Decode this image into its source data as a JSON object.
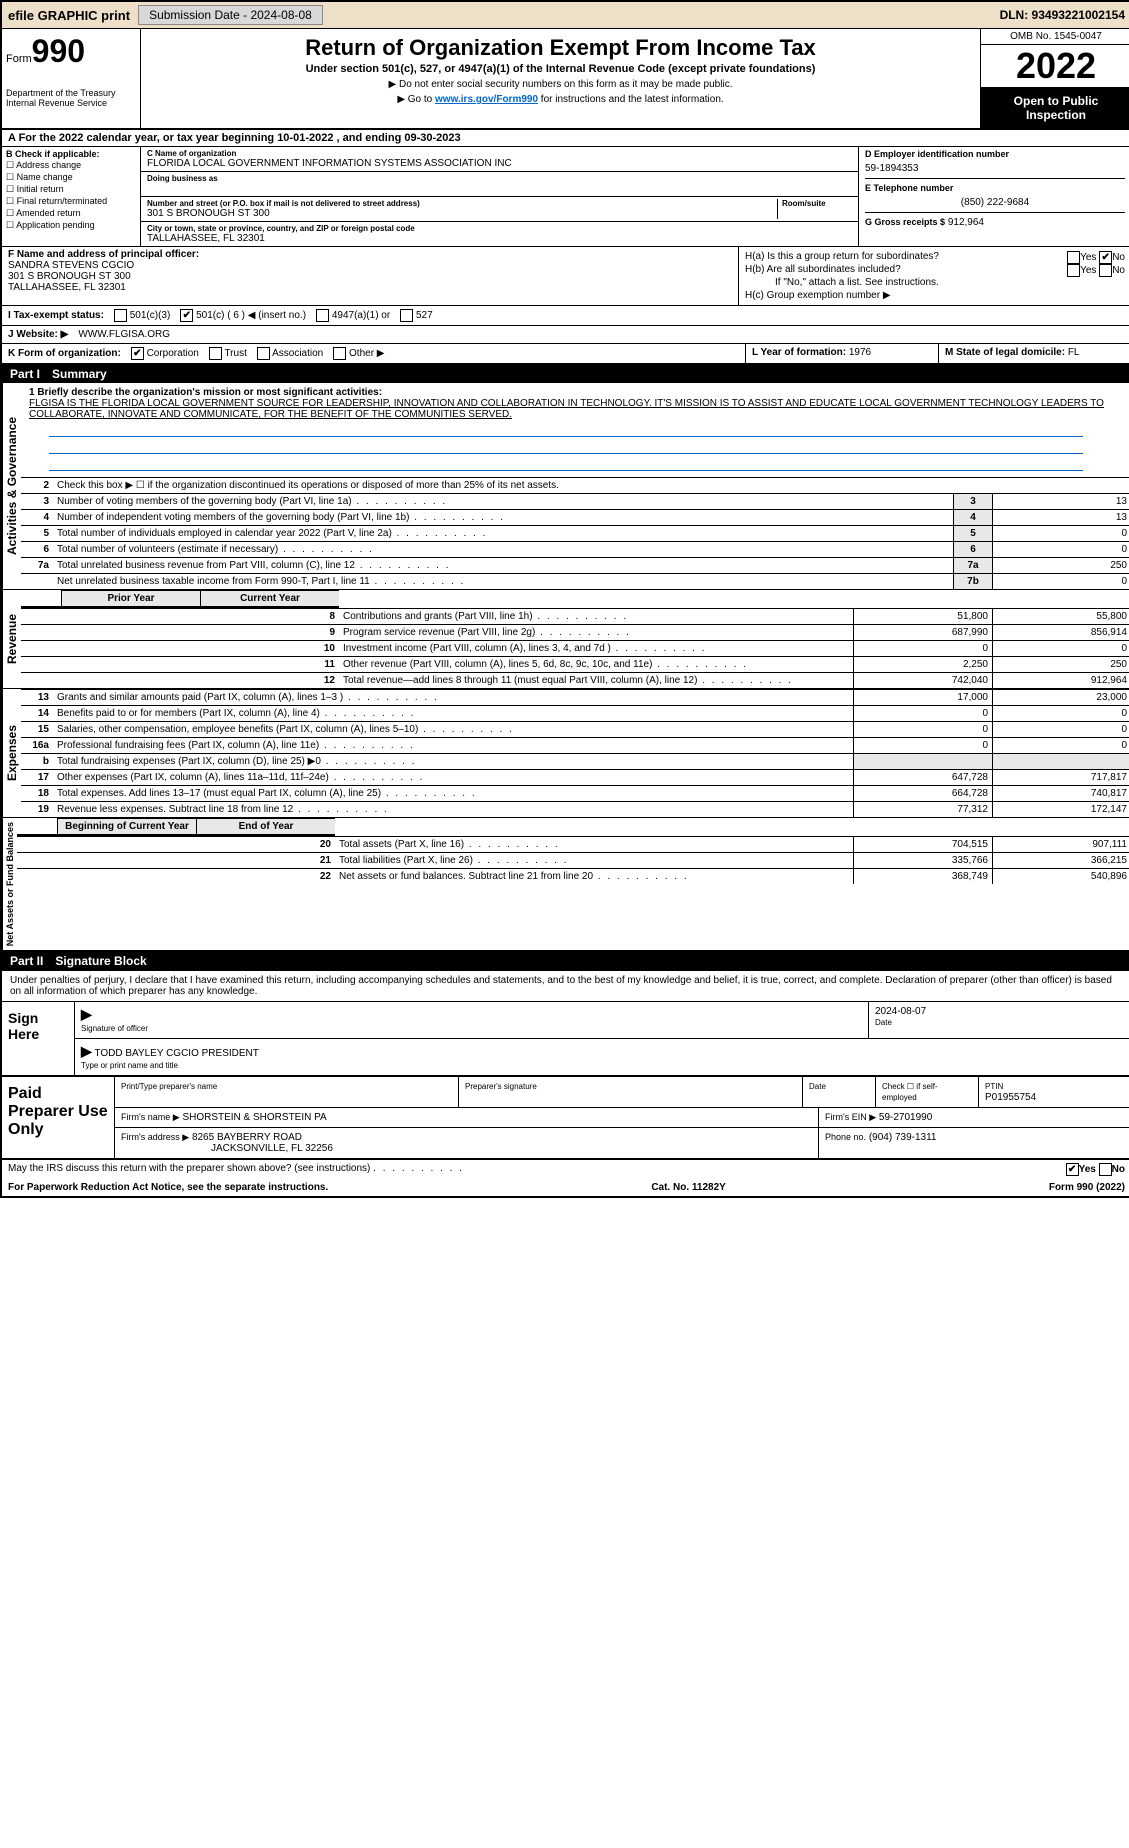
{
  "top": {
    "efile": "efile GRAPHIC print",
    "submission": "Submission Date - 2024-08-08",
    "dln": "DLN: 93493221002154"
  },
  "header": {
    "form": "Form",
    "formnum": "990",
    "dept": "Department of the Treasury\nInternal Revenue Service",
    "title": "Return of Organization Exempt From Income Tax",
    "sub": "Under section 501(c), 527, or 4947(a)(1) of the Internal Revenue Code (except private foundations)",
    "note1": "▶ Do not enter social security numbers on this form as it may be made public.",
    "note2_pre": "▶ Go to ",
    "note2_link": "www.irs.gov/Form990",
    "note2_post": " for instructions and the latest information.",
    "omb": "OMB No. 1545-0047",
    "year": "2022",
    "open": "Open to Public Inspection"
  },
  "a": {
    "text": "A For the 2022 calendar year, or tax year beginning 10-01-2022    , and ending 09-30-2023"
  },
  "b": {
    "label": "B Check if applicable:",
    "opts": [
      "Address change",
      "Name change",
      "Initial return",
      "Final return/terminated",
      "Amended return",
      "Application pending"
    ]
  },
  "c": {
    "name_label": "C Name of organization",
    "name": "FLORIDA LOCAL GOVERNMENT INFORMATION SYSTEMS ASSOCIATION INC",
    "dba_label": "Doing business as",
    "addr_label": "Number and street (or P.O. box if mail is not delivered to street address)",
    "room_label": "Room/suite",
    "addr": "301 S BRONOUGH ST 300",
    "city_label": "City or town, state or province, country, and ZIP or foreign postal code",
    "city": "TALLAHASSEE, FL  32301"
  },
  "d": {
    "label": "D Employer identification number",
    "val": "59-1894353"
  },
  "e": {
    "label": "E Telephone number",
    "val": "(850) 222-9684"
  },
  "g": {
    "label": "G Gross receipts $",
    "val": "912,964"
  },
  "f": {
    "label": "F  Name and address of principal officer:",
    "name": "SANDRA STEVENS CGCIO",
    "addr1": "301 S BRONOUGH ST 300",
    "addr2": "TALLAHASSEE, FL  32301"
  },
  "h": {
    "a_label": "H(a)  Is this a group return for subordinates?",
    "b_label": "H(b)  Are all subordinates included?",
    "b_note": "If \"No,\" attach a list. See instructions.",
    "c_label": "H(c)  Group exemption number ▶",
    "yes": "Yes",
    "no": "No"
  },
  "i": {
    "label": "I   Tax-exempt status:",
    "o1": "501(c)(3)",
    "o2": "501(c) ( 6 ) ◀ (insert no.)",
    "o3": "4947(a)(1) or",
    "o4": "527"
  },
  "j": {
    "label": "J   Website: ▶",
    "val": "WWW.FLGISA.ORG"
  },
  "k": {
    "label": "K Form of organization:",
    "o1": "Corporation",
    "o2": "Trust",
    "o3": "Association",
    "o4": "Other ▶"
  },
  "l": {
    "label": "L Year of formation:",
    "val": "1976"
  },
  "m": {
    "label": "M State of legal domicile:",
    "val": "FL"
  },
  "part1": {
    "label": "Part I",
    "title": "Summary"
  },
  "part2": {
    "label": "Part II",
    "title": "Signature Block"
  },
  "sidebars": {
    "s1": "Activities & Governance",
    "s2": "Revenue",
    "s3": "Expenses",
    "s4": "Net Assets or Fund Balances"
  },
  "mission": {
    "label": "1  Briefly describe the organization's mission or most significant activities:",
    "text": "FLGISA IS THE FLORIDA LOCAL GOVERNMENT SOURCE FOR LEADERSHIP, INNOVATION AND COLLABORATION IN TECHNOLOGY. IT'S MISSION IS TO ASSIST AND EDUCATE LOCAL GOVERNMENT TECHNOLOGY LEADERS TO COLLABORATE, INNOVATE AND COMMUNICATE, FOR THE BENEFIT OF THE COMMUNITIES SERVED."
  },
  "gov_lines": [
    {
      "n": "2",
      "d": "Check this box ▶ ☐  if the organization discontinued its operations or disposed of more than 25% of its net assets."
    },
    {
      "n": "3",
      "d": "Number of voting members of the governing body (Part VI, line 1a)",
      "box": "3",
      "v": "13"
    },
    {
      "n": "4",
      "d": "Number of independent voting members of the governing body (Part VI, line 1b)",
      "box": "4",
      "v": "13"
    },
    {
      "n": "5",
      "d": "Total number of individuals employed in calendar year 2022 (Part V, line 2a)",
      "box": "5",
      "v": "0"
    },
    {
      "n": "6",
      "d": "Total number of volunteers (estimate if necessary)",
      "box": "6",
      "v": "0"
    },
    {
      "n": "7a",
      "d": "Total unrelated business revenue from Part VIII, column (C), line 12",
      "box": "7a",
      "v": "250"
    },
    {
      "n": "",
      "d": "Net unrelated business taxable income from Form 990-T, Part I, line 11",
      "box": "7b",
      "v": "0"
    }
  ],
  "year_headers": {
    "prior": "Prior Year",
    "current": "Current Year",
    "begin": "Beginning of Current Year",
    "end": "End of Year"
  },
  "revenue_lines": [
    {
      "n": "8",
      "d": "Contributions and grants (Part VIII, line 1h)",
      "p": "51,800",
      "c": "55,800"
    },
    {
      "n": "9",
      "d": "Program service revenue (Part VIII, line 2g)",
      "p": "687,990",
      "c": "856,914"
    },
    {
      "n": "10",
      "d": "Investment income (Part VIII, column (A), lines 3, 4, and 7d )",
      "p": "0",
      "c": "0"
    },
    {
      "n": "11",
      "d": "Other revenue (Part VIII, column (A), lines 5, 6d, 8c, 9c, 10c, and 11e)",
      "p": "2,250",
      "c": "250"
    },
    {
      "n": "12",
      "d": "Total revenue—add lines 8 through 11 (must equal Part VIII, column (A), line 12)",
      "p": "742,040",
      "c": "912,964"
    }
  ],
  "expense_lines": [
    {
      "n": "13",
      "d": "Grants and similar amounts paid (Part IX, column (A), lines 1–3 )",
      "p": "17,000",
      "c": "23,000"
    },
    {
      "n": "14",
      "d": "Benefits paid to or for members (Part IX, column (A), line 4)",
      "p": "0",
      "c": "0"
    },
    {
      "n": "15",
      "d": "Salaries, other compensation, employee benefits (Part IX, column (A), lines 5–10)",
      "p": "0",
      "c": "0"
    },
    {
      "n": "16a",
      "d": "Professional fundraising fees (Part IX, column (A), line 11e)",
      "p": "0",
      "c": "0"
    },
    {
      "n": "b",
      "d": "Total fundraising expenses (Part IX, column (D), line 25) ▶0",
      "p": "",
      "c": "",
      "grey": true
    },
    {
      "n": "17",
      "d": "Other expenses (Part IX, column (A), lines 11a–11d, 11f–24e)",
      "p": "647,728",
      "c": "717,817"
    },
    {
      "n": "18",
      "d": "Total expenses. Add lines 13–17 (must equal Part IX, column (A), line 25)",
      "p": "664,728",
      "c": "740,817"
    },
    {
      "n": "19",
      "d": "Revenue less expenses. Subtract line 18 from line 12",
      "p": "77,312",
      "c": "172,147"
    }
  ],
  "net_lines": [
    {
      "n": "20",
      "d": "Total assets (Part X, line 16)",
      "p": "704,515",
      "c": "907,111"
    },
    {
      "n": "21",
      "d": "Total liabilities (Part X, line 26)",
      "p": "335,766",
      "c": "366,215"
    },
    {
      "n": "22",
      "d": "Net assets or fund balances. Subtract line 21 from line 20",
      "p": "368,749",
      "c": "540,896"
    }
  ],
  "sig": {
    "decl": "Under penalties of perjury, I declare that I have examined this return, including accompanying schedules and statements, and to the best of my knowledge and belief, it is true, correct, and complete. Declaration of preparer (other than officer) is based on all information of which preparer has any knowledge.",
    "sign_here": "Sign Here",
    "sig_label": "Signature of officer",
    "date_label": "Date",
    "date": "2024-08-07",
    "name": "TODD BAYLEY CGCIO  PRESIDENT",
    "name_label": "Type or print name and title"
  },
  "prep": {
    "label": "Paid Preparer Use Only",
    "h1": "Print/Type preparer's name",
    "h2": "Preparer's signature",
    "h3": "Date",
    "h4": "Check ☐ if self-employed",
    "ptin_label": "PTIN",
    "ptin": "P01955754",
    "firm_label": "Firm's name    ▶",
    "firm": "SHORSTEIN & SHORSTEIN PA",
    "ein_label": "Firm's EIN ▶",
    "ein": "59-2701990",
    "addr_label": "Firm's address ▶",
    "addr1": "8265 BAYBERRY ROAD",
    "addr2": "JACKSONVILLE, FL  32256",
    "phone_label": "Phone no.",
    "phone": "(904) 739-1311"
  },
  "discuss": {
    "q": "May the IRS discuss this return with the preparer shown above? (see instructions)",
    "yes": "Yes",
    "no": "No"
  },
  "footer": {
    "left": "For Paperwork Reduction Act Notice, see the separate instructions.",
    "mid": "Cat. No. 11282Y",
    "right": "Form 990 (2022)"
  }
}
